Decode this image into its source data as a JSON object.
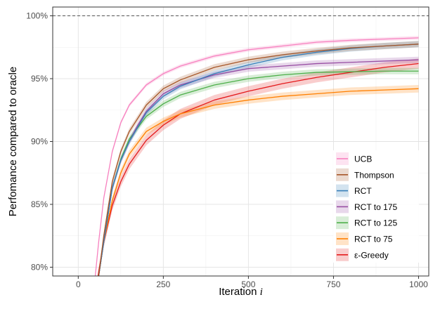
{
  "chart_data": {
    "type": "line",
    "title": "",
    "xlabel": "Iteration",
    "xlabel_symbol": "i",
    "ylabel": "Perfomance compared to oracle",
    "xlim": [
      -75,
      1030
    ],
    "ylim": [
      79.3,
      100.7
    ],
    "x_ticks": [
      0,
      250,
      500,
      750,
      1000
    ],
    "x_tick_labels": [
      "0",
      "250",
      "500",
      "750",
      "1000"
    ],
    "y_ticks": [
      80,
      85,
      90,
      95,
      100
    ],
    "y_tick_labels": [
      "80%",
      "85%",
      "90%",
      "95%",
      "100%"
    ],
    "reference_line": {
      "y": 100,
      "style": "dashed"
    },
    "grid": true,
    "legend_position": "bottom-right",
    "series": [
      {
        "name": "UCB",
        "color": "#f781bf",
        "band": 0.15,
        "x": [
          50,
          60,
          75,
          100,
          125,
          150,
          200,
          250,
          300,
          400,
          500,
          600,
          700,
          800,
          900,
          1000
        ],
        "y": [
          79.3,
          82.0,
          85.5,
          89.2,
          91.5,
          92.9,
          94.5,
          95.4,
          96.0,
          96.8,
          97.3,
          97.6,
          97.9,
          98.05,
          98.15,
          98.25
        ]
      },
      {
        "name": "Thompson",
        "color": "#a65628",
        "band": 0.25,
        "x": [
          60,
          75,
          100,
          125,
          150,
          200,
          250,
          300,
          400,
          500,
          600,
          700,
          800,
          900,
          1000
        ],
        "y": [
          79.3,
          82.5,
          86.8,
          89.2,
          90.8,
          92.9,
          94.2,
          94.9,
          95.9,
          96.5,
          96.9,
          97.2,
          97.45,
          97.6,
          97.75
        ]
      },
      {
        "name": "RCT",
        "color": "#377eb8",
        "band": 0.25,
        "x": [
          60,
          75,
          100,
          125,
          150,
          200,
          250,
          300,
          400,
          500,
          600,
          700,
          800,
          900,
          1000
        ],
        "y": [
          79.3,
          82.0,
          86.3,
          88.5,
          90.0,
          92.3,
          93.6,
          94.4,
          95.4,
          96.1,
          96.7,
          97.1,
          97.4,
          97.6,
          97.75
        ]
      },
      {
        "name": "RCT to 175",
        "color": "#984ea3",
        "band": 0.25,
        "x": [
          60,
          75,
          100,
          125,
          150,
          175,
          200,
          250,
          300,
          400,
          500,
          600,
          700,
          800,
          900,
          1000
        ],
        "y": [
          79.3,
          82.0,
          86.3,
          88.5,
          90.0,
          91.3,
          92.4,
          93.8,
          94.5,
          95.3,
          95.8,
          96.0,
          96.2,
          96.3,
          96.4,
          96.5
        ]
      },
      {
        "name": "RCT to 125",
        "color": "#4daf4a",
        "band": 0.25,
        "x": [
          60,
          75,
          100,
          125,
          150,
          200,
          250,
          300,
          400,
          500,
          600,
          700,
          800,
          900,
          1000
        ],
        "y": [
          79.3,
          82.0,
          86.3,
          88.6,
          90.2,
          92.0,
          93.0,
          93.7,
          94.5,
          95.0,
          95.3,
          95.5,
          95.55,
          95.6,
          95.6
        ]
      },
      {
        "name": "RCT to 75",
        "color": "#ff7f00",
        "band": 0.3,
        "x": [
          60,
          75,
          100,
          125,
          150,
          200,
          250,
          300,
          400,
          500,
          600,
          700,
          800,
          900,
          1000
        ],
        "y": [
          79.3,
          82.0,
          85.3,
          87.5,
          89.0,
          90.8,
          91.6,
          92.2,
          92.9,
          93.3,
          93.6,
          93.8,
          94.0,
          94.1,
          94.2
        ]
      },
      {
        "name": "ε-Greedy",
        "color": "#e41a1c",
        "band": 0.4,
        "x": [
          58,
          75,
          100,
          125,
          150,
          200,
          250,
          300,
          400,
          500,
          600,
          700,
          800,
          900,
          1000
        ],
        "y": [
          79.3,
          82.0,
          84.9,
          86.8,
          88.2,
          90.1,
          91.3,
          92.2,
          93.3,
          94.0,
          94.6,
          95.1,
          95.5,
          95.9,
          96.2
        ]
      }
    ]
  }
}
